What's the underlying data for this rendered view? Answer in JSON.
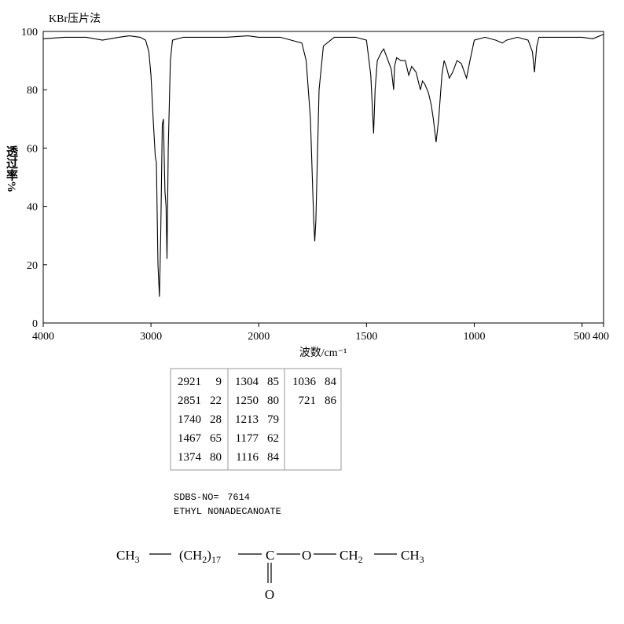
{
  "chart_data": {
    "type": "line",
    "title": "KBr压片法",
    "ylabel": "透过率%",
    "xlabel": "波数/cm⁻¹",
    "xlim": [
      4000,
      400
    ],
    "xticks": [
      4000,
      3000,
      2000,
      1500,
      1000,
      500,
      400
    ],
    "xscale": {
      "break": 2000,
      "stretch": 2
    },
    "ylim": [
      0,
      100
    ],
    "yticks": [
      0,
      20,
      40,
      60,
      80,
      100
    ],
    "color": "#000000",
    "x": [
      4000,
      3800,
      3600,
      3450,
      3300,
      3200,
      3100,
      3050,
      3020,
      3000,
      2980,
      2960,
      2950,
      2935,
      2921,
      2910,
      2895,
      2885,
      2870,
      2860,
      2851,
      2840,
      2820,
      2800,
      2700,
      2500,
      2300,
      2100,
      2000,
      1900,
      1800,
      1780,
      1760,
      1745,
      1740,
      1735,
      1720,
      1700,
      1650,
      1550,
      1500,
      1480,
      1467,
      1460,
      1450,
      1430,
      1420,
      1400,
      1385,
      1374,
      1370,
      1360,
      1340,
      1320,
      1304,
      1290,
      1270,
      1250,
      1240,
      1230,
      1213,
      1200,
      1190,
      1177,
      1165,
      1150,
      1140,
      1130,
      1116,
      1100,
      1080,
      1060,
      1036,
      1020,
      1000,
      950,
      900,
      870,
      850,
      800,
      750,
      730,
      721,
      710,
      700,
      600,
      500,
      450,
      400
    ],
    "values": [
      97.5,
      98,
      98,
      97,
      98,
      98.5,
      98,
      97,
      93,
      85,
      70,
      57,
      55,
      20,
      9,
      30,
      68,
      70,
      45,
      40,
      22,
      60,
      90,
      97,
      98,
      98,
      98,
      98.5,
      98,
      98,
      96,
      90,
      70,
      35,
      28,
      35,
      80,
      95,
      98,
      98,
      97,
      85,
      65,
      80,
      90,
      93,
      94,
      90,
      87,
      80,
      88,
      91,
      90,
      90,
      85,
      88,
      86,
      80,
      83,
      82,
      79,
      75,
      70,
      62,
      70,
      85,
      90,
      88,
      84,
      86,
      90,
      89,
      84,
      90,
      97,
      98,
      97,
      96,
      97,
      98,
      97,
      93,
      86,
      95,
      98,
      98,
      98,
      97.5,
      99
    ]
  },
  "peak_table": [
    [
      [
        2921,
        9
      ],
      [
        2851,
        22
      ],
      [
        1740,
        28
      ],
      [
        1467,
        65
      ],
      [
        1374,
        80
      ]
    ],
    [
      [
        1304,
        85
      ],
      [
        1250,
        80
      ],
      [
        1213,
        79
      ],
      [
        1177,
        62
      ],
      [
        1116,
        84
      ]
    ],
    [
      [
        1036,
        84
      ],
      [
        721,
        86
      ]
    ]
  ],
  "sdbs_label": "SDBS-NO=",
  "sdbs_no": "7614",
  "compound": "ETHYL NONADECANOATE",
  "structure": {
    "groups": [
      [
        "CH",
        "3"
      ],
      [
        "(CH",
        "2",
        ")",
        "17"
      ],
      [
        "C"
      ],
      [
        "O"
      ],
      [
        "CH",
        "2"
      ],
      [
        "CH",
        "3"
      ]
    ],
    "carbonyl_o": "O"
  }
}
